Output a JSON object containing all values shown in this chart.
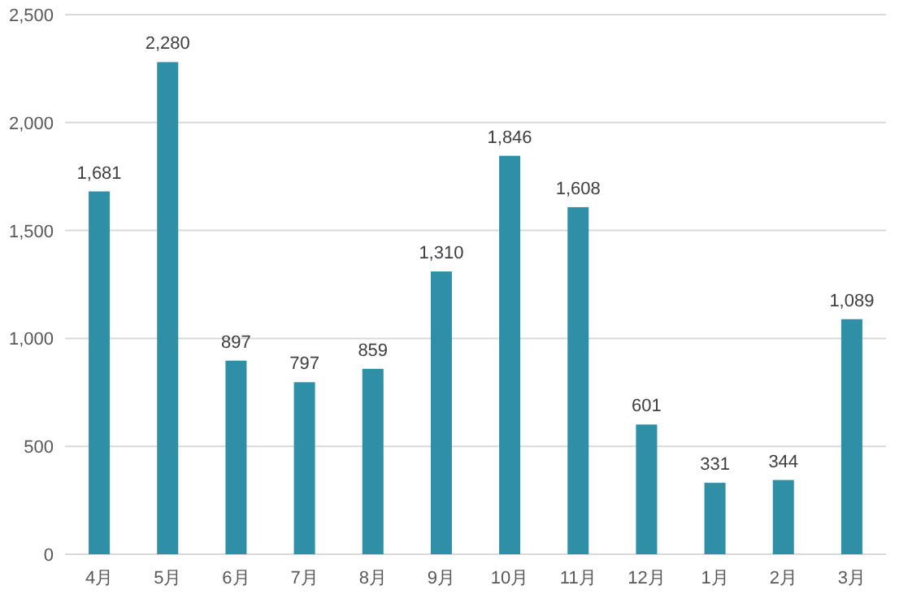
{
  "chart_data": {
    "type": "bar",
    "categories": [
      "4月",
      "5月",
      "6月",
      "7月",
      "8月",
      "9月",
      "10月",
      "11月",
      "12月",
      "1月",
      "2月",
      "3月"
    ],
    "values": [
      1681,
      2280,
      897,
      797,
      859,
      1310,
      1846,
      1608,
      601,
      331,
      344,
      1089
    ],
    "value_labels": [
      "1,681",
      "2,280",
      "897",
      "797",
      "859",
      "1,310",
      "1,846",
      "1,608",
      "601",
      "331",
      "344",
      "1,089"
    ],
    "color": "#2e8fa6",
    "ylim": [
      0,
      2500
    ],
    "yticks": [
      {
        "value": 0,
        "label": "0"
      },
      {
        "value": 500,
        "label": "500"
      },
      {
        "value": 1000,
        "label": "1,000"
      },
      {
        "value": 1500,
        "label": "1,500"
      },
      {
        "value": 2000,
        "label": "2,000"
      },
      {
        "value": 2500,
        "label": "2,500"
      }
    ],
    "grid": "y"
  }
}
